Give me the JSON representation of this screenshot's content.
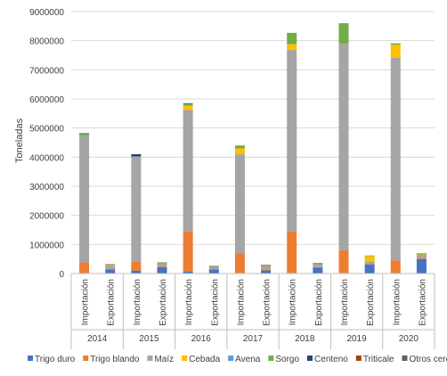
{
  "chart_data": {
    "type": "bar",
    "stacked": true,
    "ylabel": "Toneladas",
    "ylim": [
      0,
      9000000
    ],
    "yticks": [
      0,
      1000000,
      2000000,
      3000000,
      4000000,
      5000000,
      6000000,
      7000000,
      8000000,
      9000000
    ],
    "ytick_labels": [
      "0",
      "1000000",
      "2000000",
      "3000000",
      "4000000",
      "5000000",
      "6000000",
      "7000000",
      "8000000",
      "9000000"
    ],
    "grid": "horizontal",
    "legend_position": "bottom",
    "years": [
      "2014",
      "2015",
      "2016",
      "2017",
      "2018",
      "2019",
      "2020"
    ],
    "subcategories": [
      "Importación",
      "Exportación"
    ],
    "categories": [
      "2014 Importación",
      "2014 Exportación",
      "2015 Importación",
      "2015 Exportación",
      "2016 Importación",
      "2016 Exportación",
      "2017 Importación",
      "2017 Exportación",
      "2018 Importación",
      "2018 Exportación",
      "2019 Importación",
      "2019 Exportación",
      "2020 Importación",
      "2020 Exportación"
    ],
    "series": [
      {
        "name": "Trigo duro",
        "color": "#4472C4",
        "values": [
          20000,
          140000,
          100000,
          220000,
          60000,
          140000,
          20000,
          110000,
          20000,
          210000,
          20000,
          320000,
          20000,
          500000
        ]
      },
      {
        "name": "Trigo blando",
        "color": "#ED7D31",
        "values": [
          360000,
          10000,
          300000,
          10000,
          1400000,
          10000,
          680000,
          10000,
          1420000,
          10000,
          780000,
          10000,
          430000,
          40000
        ]
      },
      {
        "name": "Maíz",
        "color": "#A5A5A5",
        "values": [
          4360000,
          120000,
          3620000,
          110000,
          4160000,
          90000,
          3400000,
          140000,
          6240000,
          100000,
          7100000,
          80000,
          6960000,
          100000
        ]
      },
      {
        "name": "Cebada",
        "color": "#FFC000",
        "values": [
          0,
          10000,
          0,
          10000,
          150000,
          0,
          200000,
          10000,
          200000,
          0,
          0,
          200000,
          450000,
          20000
        ]
      },
      {
        "name": "Avena",
        "color": "#5B9BD5",
        "values": [
          10000,
          0,
          0,
          0,
          20000,
          0,
          0,
          0,
          0,
          0,
          0,
          0,
          0,
          0
        ]
      },
      {
        "name": "Sorgo",
        "color": "#70AD47",
        "values": [
          60000,
          20000,
          0,
          20000,
          40000,
          10000,
          100000,
          10000,
          390000,
          20000,
          700000,
          10000,
          50000,
          10000
        ]
      },
      {
        "name": "Centeno",
        "color": "#264478",
        "values": [
          10000,
          0,
          80000,
          0,
          20000,
          0,
          0,
          0,
          0,
          0,
          0,
          0,
          0,
          0
        ]
      },
      {
        "name": "Triticale",
        "color": "#9E480E",
        "values": [
          0,
          0,
          0,
          0,
          0,
          0,
          0,
          0,
          0,
          0,
          0,
          0,
          0,
          0
        ]
      },
      {
        "name": "Otros cereales",
        "color": "#636363",
        "values": [
          0,
          20000,
          0,
          10000,
          0,
          10000,
          0,
          20000,
          0,
          20000,
          0,
          0,
          0,
          20000
        ]
      }
    ]
  }
}
